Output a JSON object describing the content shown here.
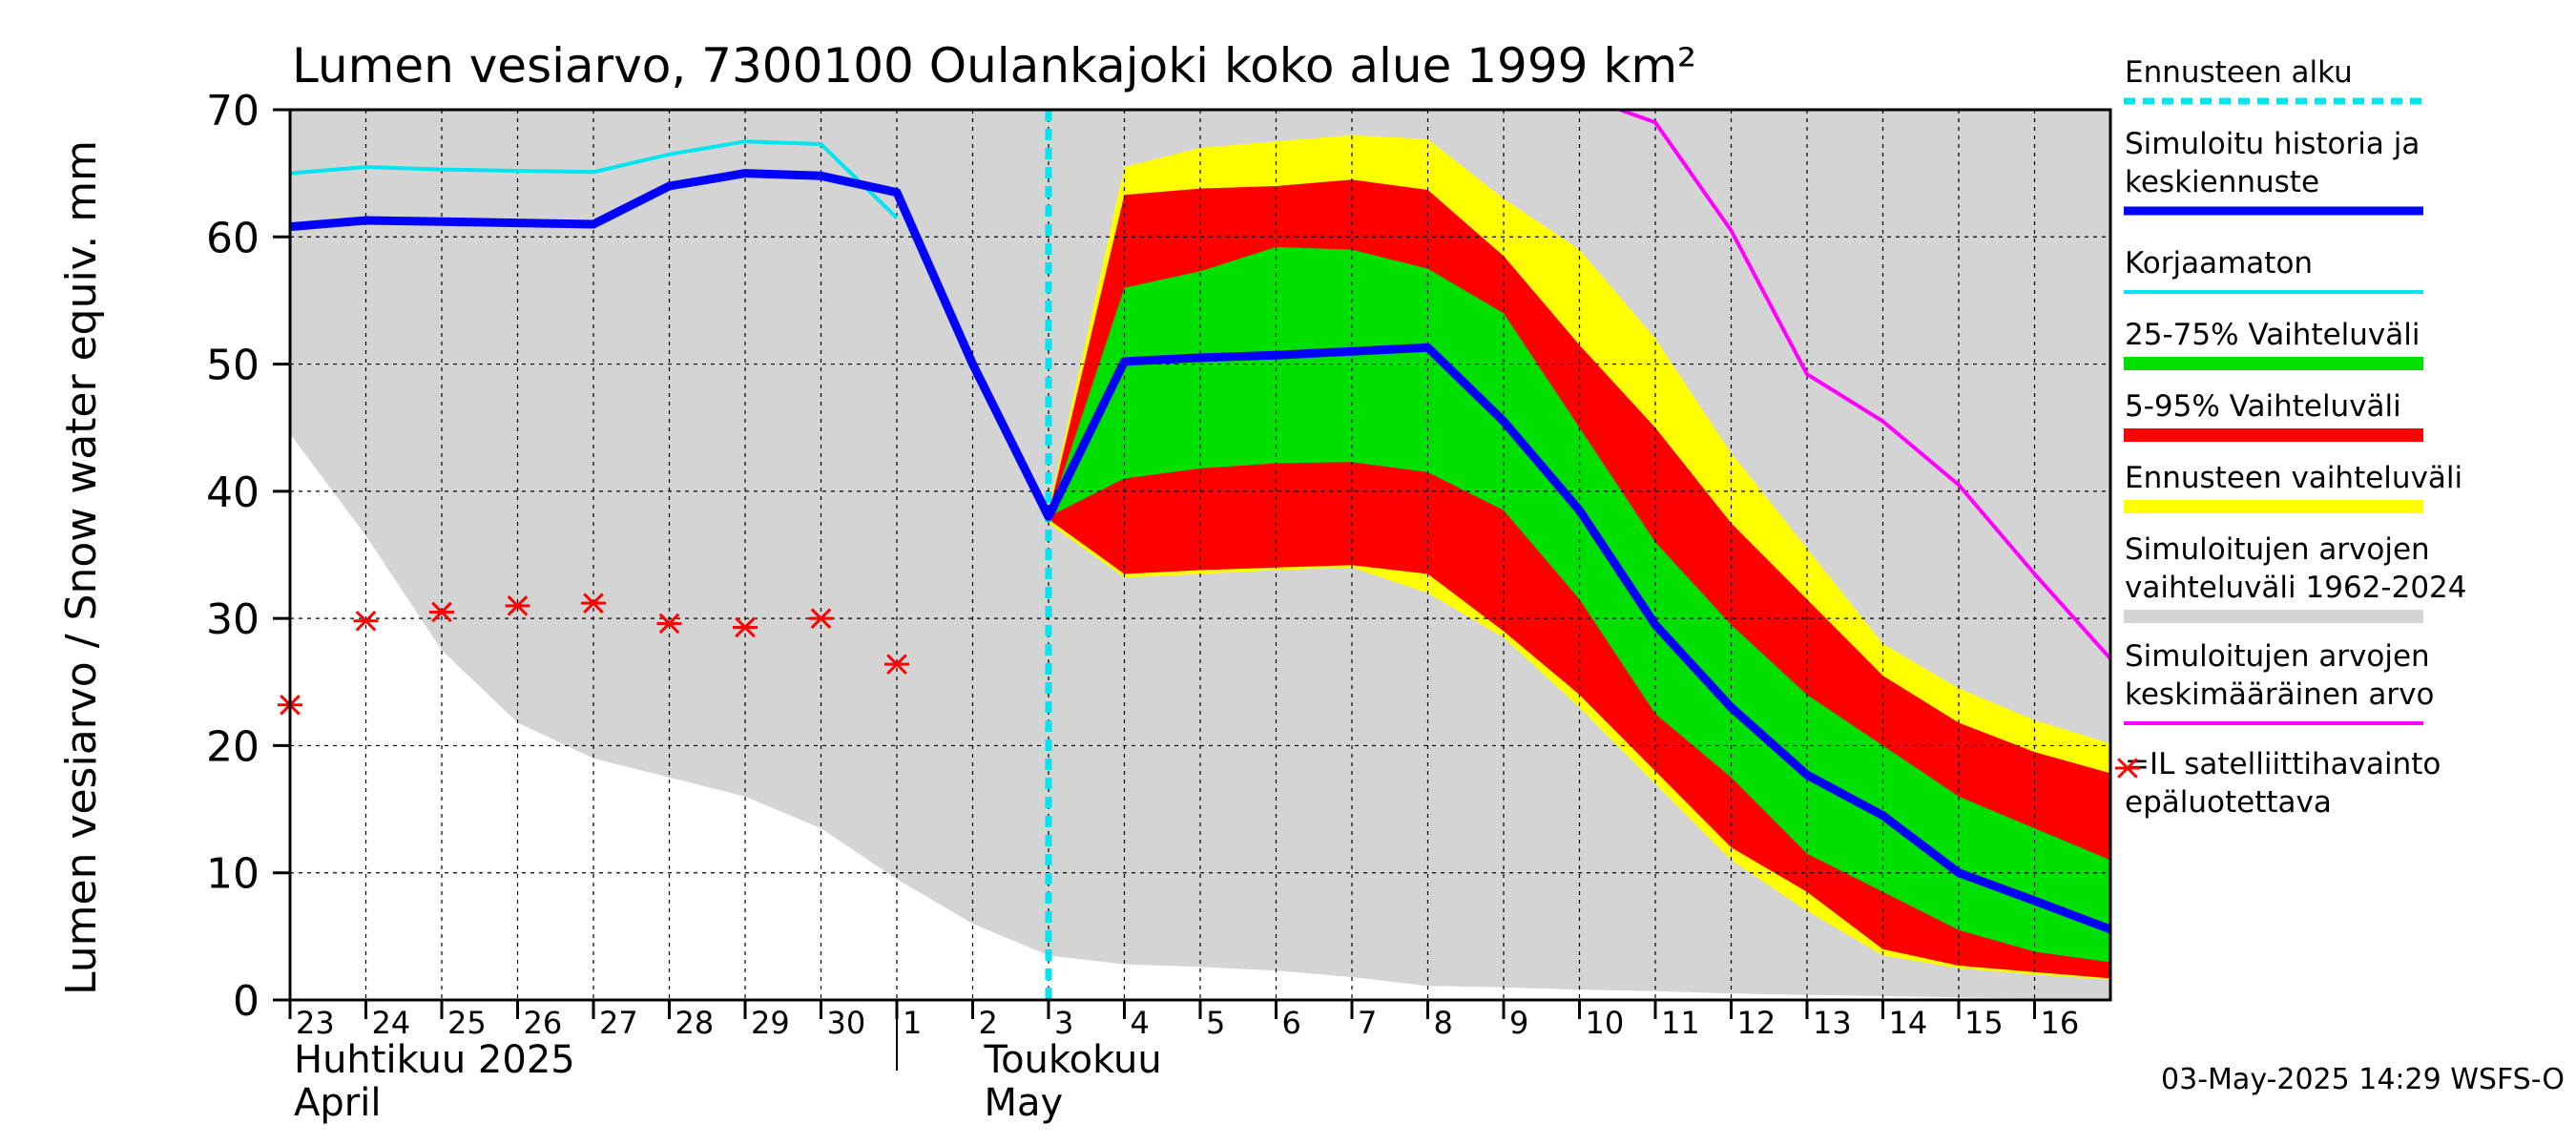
{
  "chart_data": {
    "type": "area",
    "title": "Lumen vesiarvo, 7300100 Oulankajoki koko alue 1999 km²",
    "ylabel": "Lumen vesiarvo / Snow water equiv.    mm",
    "ylim": [
      0,
      70
    ],
    "yticks": [
      0,
      10,
      20,
      30,
      40,
      50,
      60,
      70
    ],
    "xlim": [
      0,
      24.2
    ],
    "x_ticks": [
      {
        "x": 0,
        "label": "23"
      },
      {
        "x": 1,
        "label": "24"
      },
      {
        "x": 2,
        "label": "25"
      },
      {
        "x": 3,
        "label": "26"
      },
      {
        "x": 4,
        "label": "27"
      },
      {
        "x": 5,
        "label": "28"
      },
      {
        "x": 6,
        "label": "29"
      },
      {
        "x": 7,
        "label": "30"
      },
      {
        "x": 8,
        "label": "1"
      },
      {
        "x": 9,
        "label": "2"
      },
      {
        "x": 10,
        "label": "3"
      },
      {
        "x": 11,
        "label": "4"
      },
      {
        "x": 12,
        "label": "5"
      },
      {
        "x": 13,
        "label": "6"
      },
      {
        "x": 14,
        "label": "7"
      },
      {
        "x": 15,
        "label": "8"
      },
      {
        "x": 16,
        "label": "9"
      },
      {
        "x": 17,
        "label": "10"
      },
      {
        "x": 18,
        "label": "11"
      },
      {
        "x": 19,
        "label": "12"
      },
      {
        "x": 20,
        "label": "13"
      },
      {
        "x": 21,
        "label": "14"
      },
      {
        "x": 22,
        "label": "15"
      },
      {
        "x": 23,
        "label": "16"
      }
    ],
    "months": [
      {
        "line1": "Huhtikuu  2025",
        "line2": "April",
        "x": 0
      },
      {
        "line1": "Toukokuu",
        "line2": "May",
        "x": 9.1
      }
    ],
    "month_separator_x": 8,
    "forecast_start_x": 10,
    "timestamp": "03-May-2025 14:29 WSFS-O",
    "bands": [
      {
        "name": "Simuloitujen arvojen vaihteluväli 1962-2024",
        "color": "#d4d4d4",
        "x": [
          0,
          1,
          2,
          3,
          4,
          5,
          6,
          7,
          8,
          9,
          10,
          11,
          12,
          13,
          14,
          15,
          16,
          17,
          18,
          19,
          20,
          21,
          22,
          23,
          24.2
        ],
        "lower": [
          44.5,
          36.5,
          27.5,
          21.8,
          19.0,
          17.5,
          16.0,
          13.5,
          9.5,
          6.0,
          3.5,
          2.8,
          2.6,
          2.3,
          1.8,
          1.1,
          1.0,
          0.8,
          0.7,
          0.5,
          0.4,
          0.3,
          0.2,
          0.1,
          0.1
        ],
        "upper": [
          70,
          70,
          70,
          70,
          70,
          70,
          70,
          70,
          70,
          70,
          70,
          70,
          70,
          70,
          70,
          70,
          70,
          70,
          70,
          70,
          70,
          70,
          70,
          70,
          70
        ]
      },
      {
        "name": "Ennusteen vaihteluväli",
        "color": "#ffff00",
        "x": [
          10,
          11,
          12,
          13,
          14,
          15,
          16,
          17,
          18,
          19,
          20,
          21,
          22,
          23,
          24.2
        ],
        "lower": [
          37.5,
          33.2,
          33.5,
          33.8,
          34.0,
          32.0,
          28.5,
          23.0,
          17.0,
          11.0,
          7.0,
          3.5,
          2.5,
          2.0,
          1.5
        ],
        "upper": [
          38.5,
          65.5,
          67.0,
          67.5,
          68.0,
          67.7,
          63.0,
          59.0,
          52.0,
          43.0,
          35.5,
          28.0,
          24.5,
          22.0,
          19.8
        ]
      },
      {
        "name": "5-95% Vaihteluväli",
        "color": "#ff0000",
        "x": [
          10,
          11,
          12,
          13,
          14,
          15,
          16,
          17,
          18,
          19,
          20,
          21,
          22,
          23,
          24.2
        ],
        "lower": [
          37.8,
          33.5,
          33.8,
          34.0,
          34.2,
          33.5,
          29.0,
          24.0,
          18.0,
          12.0,
          8.5,
          4.0,
          2.7,
          2.2,
          1.6
        ],
        "upper": [
          38.2,
          63.3,
          63.8,
          64.0,
          64.5,
          63.7,
          58.5,
          51.5,
          45.0,
          37.5,
          31.5,
          25.5,
          21.8,
          19.5,
          17.5
        ]
      },
      {
        "name": "25-75% Vaihteluväli",
        "color": "#00e000",
        "x": [
          10,
          11,
          12,
          13,
          14,
          15,
          16,
          17,
          18,
          19,
          20,
          21,
          22,
          23,
          24.2
        ],
        "lower": [
          38.0,
          41.0,
          41.8,
          42.2,
          42.3,
          41.5,
          38.5,
          31.5,
          22.5,
          17.5,
          11.5,
          8.5,
          5.5,
          3.8,
          2.8
        ],
        "upper": [
          38.0,
          56.0,
          57.3,
          59.2,
          59.0,
          57.5,
          54.0,
          45.0,
          36.0,
          29.5,
          24.0,
          20.0,
          16.0,
          13.5,
          10.5
        ]
      }
    ],
    "series": [
      {
        "name": "Simuloitujen arvojen keskimääräinen arvo",
        "color": "#ff00ff",
        "width": 4,
        "x": [
          17.3,
          18,
          19,
          20,
          21,
          22,
          23,
          24.2
        ],
        "y": [
          70.5,
          69.0,
          60.5,
          49.2,
          45.5,
          40.5,
          33.5,
          25.5
        ]
      },
      {
        "name": "Korjaamaton",
        "color": "#00e5ee",
        "width": 4,
        "x": [
          0,
          1,
          2,
          3,
          4,
          5,
          6,
          7,
          8
        ],
        "y": [
          65.0,
          65.5,
          65.3,
          65.2,
          65.1,
          66.5,
          67.5,
          67.3,
          61.5
        ]
      },
      {
        "name": "Simuloitu historia ja keskiennuste",
        "color": "#0000ff",
        "width": 9,
        "x": [
          0,
          1,
          2,
          3,
          4,
          5,
          6,
          7,
          8,
          9,
          10,
          11,
          12,
          13,
          14,
          15,
          16,
          17,
          18,
          19,
          20,
          21,
          22,
          23,
          24.2
        ],
        "y": [
          60.8,
          61.3,
          61.2,
          61.1,
          61.0,
          64.0,
          65.0,
          64.8,
          63.5,
          50.0,
          38.0,
          50.2,
          50.5,
          50.7,
          51.0,
          51.3,
          45.5,
          38.5,
          29.5,
          23.0,
          17.7,
          14.5,
          10.0,
          7.8,
          5.1
        ]
      }
    ],
    "markers": {
      "name": "=IL satelliittihavainto epäluotettava",
      "color": "#ff0000",
      "symbol": "asterisk",
      "x": [
        0,
        1,
        2,
        3,
        4,
        5,
        6,
        7,
        8
      ],
      "y": [
        23.2,
        29.8,
        30.5,
        31.0,
        31.2,
        29.6,
        29.3,
        30.0,
        26.4
      ]
    },
    "legend": {
      "position": "right",
      "items": [
        {
          "lines": [
            "Ennusteen alku"
          ],
          "color": "#00e5ee",
          "style": "dashed"
        },
        {
          "lines": [
            "Simuloitu historia ja",
            "keskiennuste"
          ],
          "color": "#0000ff",
          "style": "thick"
        },
        {
          "lines": [
            "Korjaamaton"
          ],
          "color": "#00e5ee",
          "style": "thin"
        },
        {
          "lines": [
            "25-75% Vaihteluväli"
          ],
          "color": "#00e000",
          "style": "band"
        },
        {
          "lines": [
            "5-95% Vaihteluväli"
          ],
          "color": "#ff0000",
          "style": "band"
        },
        {
          "lines": [
            "Ennusteen vaihteluväli"
          ],
          "color": "#ffff00",
          "style": "band"
        },
        {
          "lines": [
            "Simuloitujen arvojen",
            "vaihteluväli 1962-2024"
          ],
          "color": "#d4d4d4",
          "style": "band"
        },
        {
          "lines": [
            "Simuloitujen arvojen",
            "keskimääräinen arvo"
          ],
          "color": "#ff00ff",
          "style": "thin"
        },
        {
          "lines": [
            "=IL satelliittihavainto",
            "epäluotettava"
          ],
          "color": "#ff0000",
          "style": "marker"
        }
      ]
    }
  }
}
